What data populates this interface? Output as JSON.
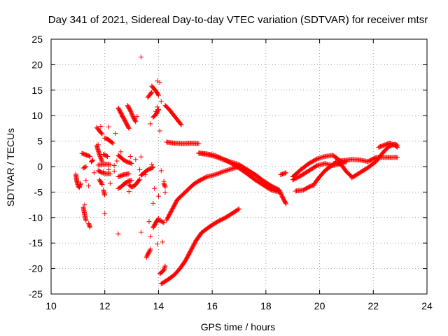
{
  "chart_data": {
    "type": "scatter",
    "title": "Day 341 of 2021, Sidereal Day-to-day VTEC variation (SDTVAR) for receiver mtsr",
    "xlabel": "GPS time / hours",
    "ylabel": "SDTVAR / TECUs",
    "xlim": [
      10,
      24
    ],
    "ylim": [
      -25,
      25
    ],
    "xticks": [
      10,
      12,
      14,
      16,
      18,
      20,
      22,
      24
    ],
    "yticks": [
      -25,
      -20,
      -15,
      -10,
      -5,
      0,
      5,
      10,
      15,
      20,
      25
    ],
    "grid": true,
    "legend": "none",
    "marker": "+",
    "color": "#ff0000",
    "series": [
      {
        "name": "SDTVAR",
        "segments": [
          {
            "x": [
              10.92,
              10.95,
              10.98,
              11.02,
              11.05,
              11.1
            ],
            "y": [
              -1.5,
              -2.6,
              -3.3,
              -3.9,
              -4.1,
              -3.3
            ]
          },
          {
            "x": [
              11.15,
              11.25,
              11.35,
              11.45
            ],
            "y": [
              2.6,
              2.4,
              2.2,
              2.0
            ]
          },
          {
            "x": [
              11.2,
              11.25,
              11.3
            ],
            "y": [
              -8.0,
              -9.4,
              -10.6
            ]
          },
          {
            "x": [
              11.4,
              11.45
            ],
            "y": [
              -11.2,
              -11.9
            ]
          },
          {
            "x": [
              11.2,
              11.3
            ],
            "y": [
              -0.3,
              0.0
            ]
          },
          {
            "x": [
              11.5,
              11.55
            ],
            "y": [
              0.9,
              1.3
            ]
          },
          {
            "x": [
              11.7,
              11.8,
              11.9
            ],
            "y": [
              4.1,
              2.4,
              1.0
            ]
          },
          {
            "x": [
              11.7,
              11.8,
              11.9
            ],
            "y": [
              7.7,
              7.0,
              6.4
            ]
          },
          {
            "x": [
              11.75,
              11.9,
              12.05,
              12.2
            ],
            "y": [
              0.3,
              0.4,
              0.5,
              0.4
            ]
          },
          {
            "x": [
              11.75,
              11.9,
              12.05,
              12.2
            ],
            "y": [
              -0.8,
              -1.2,
              -1.4,
              -1.4
            ]
          },
          {
            "x": [
              11.8,
              11.9
            ],
            "y": [
              -2.6,
              -3.5
            ]
          },
          {
            "x": [
              12.0,
              12.1,
              12.2,
              12.3
            ],
            "y": [
              5.6,
              5.4,
              5.0,
              4.6
            ]
          },
          {
            "x": [
              11.95,
              12.1
            ],
            "y": [
              2.4,
              2.0
            ]
          },
          {
            "x": [
              11.95,
              12.0
            ],
            "y": [
              -4.6,
              -5.6
            ]
          },
          {
            "x": [
              12.5,
              12.6,
              12.7,
              12.8,
              12.9
            ],
            "y": [
              11.5,
              10.5,
              9.5,
              8.5,
              7.5
            ]
          },
          {
            "x": [
              12.5,
              12.6,
              12.7,
              12.8,
              12.9,
              13.0
            ],
            "y": [
              2.2,
              1.8,
              1.3,
              1.0,
              0.8,
              0.6
            ]
          },
          {
            "x": [
              12.5,
              12.6,
              12.7,
              12.8,
              12.9,
              13.0
            ],
            "y": [
              -4.3,
              -4.0,
              -3.5,
              -3.1,
              -2.8,
              -2.7
            ]
          },
          {
            "x": [
              12.5,
              12.6,
              12.7,
              12.8,
              12.9
            ],
            "y": [
              -2.0,
              -1.8,
              -1.6,
              -1.5,
              -1.4
            ]
          },
          {
            "x": [
              12.85,
              12.95,
              13.05,
              13.15
            ],
            "y": [
              12.0,
              11.0,
              9.8,
              8.8
            ]
          },
          {
            "x": [
              12.9,
              13.0,
              13.1,
              13.2,
              13.3
            ],
            "y": [
              -3.6,
              -4.0,
              -3.8,
              -3.2,
              -2.5
            ]
          },
          {
            "x": [
              13.35,
              13.45,
              13.55,
              13.65,
              13.75,
              13.8
            ],
            "y": [
              -1.7,
              -1.3,
              -0.8,
              -0.5,
              -0.3,
              -0.1
            ]
          },
          {
            "x": [
              13.6,
              13.7,
              13.75
            ],
            "y": [
              13.6,
              14.2,
              14.6
            ]
          },
          {
            "x": [
              13.75,
              13.85,
              13.95,
              14.0
            ],
            "y": [
              15.8,
              15.2,
              14.5,
              14.0
            ]
          },
          {
            "x": [
              13.8,
              13.9,
              14.0
            ],
            "y": [
              9.7,
              10.2,
              11.2
            ]
          },
          {
            "x": [
              13.55,
              13.6,
              13.65,
              13.7
            ],
            "y": [
              -17.8,
              -17.2,
              -16.8,
              -16.2
            ]
          },
          {
            "x": [
              13.8,
              13.85,
              13.9,
              13.95,
              14.0
            ],
            "y": [
              -12.0,
              -11.5,
              -11.0,
              -10.6,
              -10.2
            ]
          },
          {
            "x": [
              14.0,
              14.1,
              14.2
            ],
            "y": [
              -10.5,
              -10.7,
              -11.0
            ]
          },
          {
            "x": [
              14.05,
              14.1,
              14.15,
              14.2,
              14.25
            ],
            "y": [
              -21.0,
              -20.8,
              -20.6,
              -20.3,
              -19.5
            ]
          },
          {
            "x": [
              14.25,
              14.4,
              14.55,
              14.7,
              14.85
            ],
            "y": [
              12.0,
              11.2,
              10.2,
              9.2,
              8.2
            ]
          },
          {
            "x": [
              14.2,
              14.25
            ],
            "y": [
              -3.3,
              -4.0
            ]
          },
          {
            "x": [
              14.1,
              14.2,
              14.4,
              14.6,
              14.8,
              15.0,
              15.2,
              15.4,
              15.6
            ],
            "y": [
              -23.0,
              -22.7,
              -22.0,
              -21.2,
              -20.0,
              -18.5,
              -16.5,
              -14.5,
              -13.0
            ]
          },
          {
            "x": [
              15.6,
              15.9,
              16.2,
              16.5,
              16.8,
              17.0
            ],
            "y": [
              -13.0,
              -11.8,
              -10.8,
              -10.0,
              -9.0,
              -8.3
            ]
          },
          {
            "x": [
              14.3,
              14.5,
              14.7,
              14.9,
              15.1,
              15.3,
              15.5
            ],
            "y": [
              -10.5,
              -8.5,
              -6.5,
              -5.5,
              -4.5,
              -3.5,
              -2.8
            ]
          },
          {
            "x": [
              15.5,
              15.8,
              16.1,
              16.4,
              16.7,
              17.0,
              17.3,
              17.6,
              17.9,
              18.2,
              18.5
            ],
            "y": [
              -2.8,
              -2.0,
              -1.6,
              -1.0,
              -0.5,
              0.0,
              -0.8,
              -1.6,
              -2.8,
              -4.0,
              -4.8
            ]
          },
          {
            "x": [
              14.3,
              14.6,
              14.9,
              15.2,
              15.5
            ],
            "y": [
              4.8,
              4.6,
              4.5,
              4.6,
              4.5
            ]
          },
          {
            "x": [
              15.5,
              15.8,
              16.1,
              16.4,
              16.7,
              17.0,
              17.3,
              17.6,
              17.9,
              18.2,
              18.5
            ],
            "y": [
              2.6,
              2.4,
              2.0,
              1.4,
              0.9,
              0.4,
              -0.6,
              -1.6,
              -2.8,
              -3.8,
              -4.6
            ]
          },
          {
            "x": [
              15.5,
              15.8,
              16.1,
              16.4,
              16.7,
              17.0,
              17.3,
              17.6,
              17.9,
              18.2,
              18.5
            ],
            "y": [
              2.7,
              2.5,
              2.2,
              1.5,
              0.7,
              -0.3,
              -1.4,
              -2.6,
              -3.6,
              -4.6,
              -5.0
            ]
          },
          {
            "x": [
              18.5,
              18.6,
              18.7,
              18.75
            ],
            "y": [
              -4.6,
              -5.8,
              -6.8,
              -7.3
            ]
          },
          {
            "x": [
              18.55,
              18.65,
              18.75
            ],
            "y": [
              -1.6,
              -1.4,
              -1.2
            ]
          },
          {
            "x": [
              19.0,
              19.3,
              19.6,
              19.9,
              20.2,
              20.5,
              20.8
            ],
            "y": [
              -2.0,
              -0.6,
              0.6,
              1.5,
              2.0,
              2.2,
              1.0
            ]
          },
          {
            "x": [
              19.0,
              19.3,
              19.6,
              19.9,
              20.2,
              20.5,
              20.8,
              21.0
            ],
            "y": [
              -2.6,
              -1.8,
              -0.8,
              0.2,
              0.6,
              0.2,
              0.6,
              1.0
            ]
          },
          {
            "x": [
              19.1,
              19.4,
              19.6,
              19.8
            ],
            "y": [
              -4.8,
              -4.6,
              -4.0,
              -3.6
            ]
          },
          {
            "x": [
              19.8,
              20.0,
              20.2,
              20.4,
              20.6,
              20.8,
              21.0,
              21.2
            ],
            "y": [
              -3.4,
              -2.0,
              -0.8,
              0.0,
              0.8,
              0.4,
              -1.0,
              -2.0
            ]
          },
          {
            "x": [
              20.6,
              20.9,
              21.2,
              21.5,
              21.8,
              22.1,
              22.4,
              22.7,
              22.9
            ],
            "y": [
              1.0,
              1.2,
              1.4,
              1.3,
              1.0,
              1.8,
              1.8,
              1.8,
              1.8
            ]
          },
          {
            "x": [
              21.2,
              21.5,
              21.8,
              22.1,
              22.4,
              22.6,
              22.8,
              22.9
            ],
            "y": [
              -2.2,
              -1.2,
              -0.2,
              1.0,
              3.0,
              4.0,
              4.4,
              4.2
            ]
          },
          {
            "x": [
              22.2,
              22.4,
              22.6,
              22.8,
              22.9
            ],
            "y": [
              3.8,
              4.2,
              4.6,
              4.2,
              3.8
            ]
          }
        ],
        "points": [
          [
            13.35,
            21.5
          ],
          [
            13.95,
            16.8
          ],
          [
            14.05,
            16.5
          ],
          [
            14.1,
            12.8
          ],
          [
            13.95,
            11.7
          ],
          [
            13.2,
            9.8
          ],
          [
            12.65,
            9.8
          ],
          [
            12.4,
            6.5
          ],
          [
            12.6,
            2.9
          ],
          [
            12.45,
            1.1
          ],
          [
            12.15,
            7.8
          ],
          [
            11.85,
            7.9
          ],
          [
            12.95,
            2.0
          ],
          [
            13.35,
            1.9
          ],
          [
            13.3,
            -0.6
          ],
          [
            13.15,
            1.4
          ],
          [
            13.8,
            -7.2
          ],
          [
            13.65,
            -10.8
          ],
          [
            13.95,
            -15.2
          ],
          [
            13.7,
            -13.7
          ],
          [
            14.15,
            -14.8
          ],
          [
            14.0,
            -5.8
          ],
          [
            13.85,
            -4.3
          ],
          [
            13.35,
            -12.9
          ],
          [
            12.5,
            -13.2
          ],
          [
            12.0,
            -9.2
          ],
          [
            11.25,
            -7.5
          ],
          [
            11.6,
            -1.2
          ],
          [
            11.3,
            -2.7
          ],
          [
            11.4,
            -3.8
          ],
          [
            11.75,
            4.3
          ],
          [
            12.9,
            -4.9
          ],
          [
            14.25,
            -5.1
          ],
          [
            13.75,
            0.4
          ],
          [
            13.9,
            10.8
          ],
          [
            13.7,
            8.4
          ],
          [
            12.35,
            0.2
          ],
          [
            12.15,
            -0.6
          ],
          [
            13.5,
            -1.6
          ],
          [
            14.1,
            -0.8
          ],
          [
            14.05,
            7.0
          ],
          [
            14.2,
            -2.9
          ],
          [
            12.35,
            -0.9
          ],
          [
            11.95,
            -1.0
          ],
          [
            12.2,
            -3.3
          ]
        ]
      }
    ]
  }
}
